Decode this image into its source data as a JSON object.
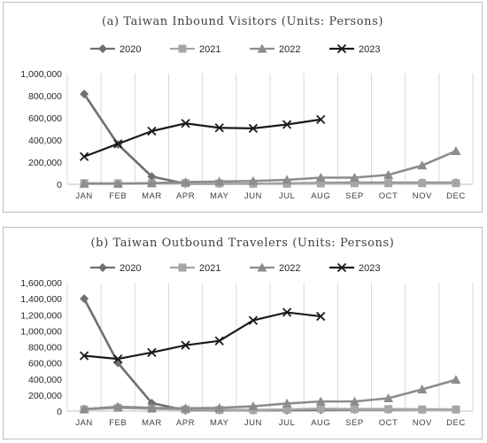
{
  "chart_data": [
    {
      "type": "line",
      "title": "(a) Taiwan Inbound Visitors (Units: Persons)",
      "categories": [
        "JAN",
        "FEB",
        "MAR",
        "APR",
        "MAY",
        "JUN",
        "JUL",
        "AUG",
        "SEP",
        "OCT",
        "NOV",
        "DEC"
      ],
      "ylim": [
        0,
        1000000
      ],
      "yticks": [
        0,
        200000,
        400000,
        600000,
        800000,
        1000000
      ],
      "ytick_labels": [
        "0",
        "200,000",
        "400,000",
        "600,000",
        "800,000",
        "1,000,000"
      ],
      "grid": "vertical",
      "legend": "top",
      "series": [
        {
          "name": "2020",
          "color": "#707070",
          "marker": "diamond",
          "values": [
            815000,
            360000,
            70000,
            5000,
            5000,
            5000,
            8000,
            12000,
            15000,
            15000,
            15000,
            15000
          ]
        },
        {
          "name": "2021",
          "color": "#a6a6a6",
          "marker": "square",
          "values": [
            10000,
            8000,
            10000,
            10000,
            8000,
            5000,
            5000,
            8000,
            10000,
            10000,
            10000,
            10000
          ]
        },
        {
          "name": "2022",
          "color": "#8c8c8c",
          "marker": "triangle",
          "values": [
            5000,
            5000,
            10000,
            20000,
            25000,
            30000,
            40000,
            60000,
            60000,
            85000,
            170000,
            300000
          ]
        },
        {
          "name": "2023",
          "color": "#1a1a1a",
          "marker": "x",
          "values": [
            250000,
            365000,
            480000,
            550000,
            510000,
            505000,
            540000,
            585000,
            null,
            null,
            null,
            null
          ]
        }
      ]
    },
    {
      "type": "line",
      "title": "(b) Taiwan Outbound Travelers (Units: Persons)",
      "categories": [
        "JAN",
        "FEB",
        "MAR",
        "APR",
        "MAY",
        "JUN",
        "JUL",
        "AUG",
        "SEP",
        "OCT",
        "NOV",
        "DEC"
      ],
      "ylim": [
        0,
        1600000
      ],
      "yticks": [
        0,
        200000,
        400000,
        600000,
        800000,
        1000000,
        1200000,
        1400000,
        1600000
      ],
      "ytick_labels": [
        "0",
        "200,000",
        "400,000",
        "600,000",
        "800,000",
        "1,000,000",
        "1,200,000",
        "1,400,000",
        "1,600,000"
      ],
      "grid": "vertical",
      "legend": "top",
      "series": [
        {
          "name": "2020",
          "color": "#707070",
          "marker": "diamond",
          "values": [
            1400000,
            600000,
            100000,
            10000,
            10000,
            10000,
            10000,
            15000,
            20000,
            20000,
            20000,
            20000
          ]
        },
        {
          "name": "2021",
          "color": "#a6a6a6",
          "marker": "square",
          "values": [
            20000,
            40000,
            30000,
            20000,
            15000,
            15000,
            20000,
            30000,
            25000,
            25000,
            20000,
            20000
          ]
        },
        {
          "name": "2022",
          "color": "#8c8c8c",
          "marker": "triangle",
          "values": [
            25000,
            55000,
            40000,
            35000,
            40000,
            60000,
            95000,
            120000,
            120000,
            160000,
            270000,
            390000
          ]
        },
        {
          "name": "2023",
          "color": "#1a1a1a",
          "marker": "x",
          "values": [
            690000,
            650000,
            730000,
            820000,
            875000,
            1130000,
            1230000,
            1180000,
            null,
            null,
            null,
            null
          ]
        }
      ]
    }
  ]
}
